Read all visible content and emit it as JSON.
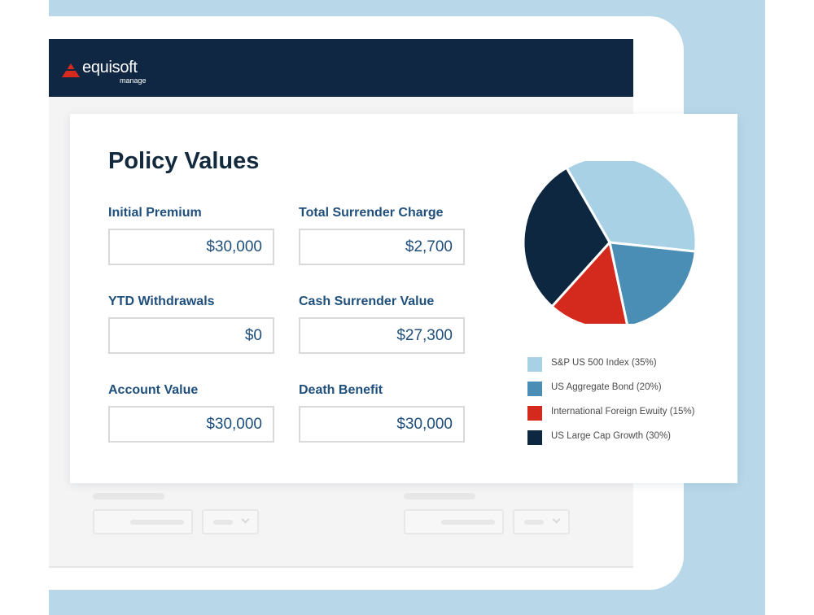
{
  "brand": {
    "name": "equisoft",
    "product": "manage"
  },
  "card": {
    "title": "Policy Values",
    "fields": [
      {
        "label": "Initial Premium",
        "value": "$30,000"
      },
      {
        "label": "Total Surrender Charge",
        "value": "$2,700"
      },
      {
        "label": "YTD Withdrawals",
        "value": "$0"
      },
      {
        "label": "Cash Surrender Value",
        "value": "$27,300"
      },
      {
        "label": "Account Value",
        "value": "$30,000"
      },
      {
        "label": "Death Benefit",
        "value": "$30,000"
      }
    ]
  },
  "chart_data": {
    "type": "pie",
    "categories": [
      "S&P US 500 Index (35%)",
      "US Aggregate Bond (20%)",
      "International Foreign Ewuity (15%)",
      "US Large Cap Growth (30%)"
    ],
    "values": [
      35,
      20,
      15,
      30
    ],
    "colors": [
      "#a9d1e6",
      "#4a8db5",
      "#d42a1e",
      "#0d2740"
    ],
    "legend_position": "below"
  },
  "colors": {
    "header": "#0f2742",
    "accent": "#1f4f7c",
    "brand_red": "#d72a1f",
    "background": "#b8d7e8"
  },
  "icons": {
    "brand_logo": "triangle-logo-icon",
    "dropdown": "chevron-down-icon"
  }
}
